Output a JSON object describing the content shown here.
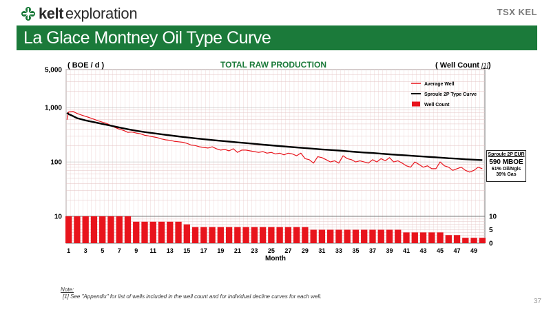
{
  "header": {
    "logo_text_bold": "kelt",
    "logo_text_regular": "exploration",
    "exchange_logo_text": "TSX KEL",
    "page_title": "La Glace Montney Oil Type Curve",
    "brand_color": "#1b7a3a"
  },
  "chart_header": {
    "left_unit": "( BOE / d )",
    "title": "TOTAL RAW PRODUCTION",
    "right_unit": "( Well Count ",
    "right_unit_ref": "[1]",
    "right_unit_close": ")"
  },
  "eur_box": {
    "title": "Sproule 2P EUR",
    "value": "590 MBOE",
    "oil_share": "61% Oil/Ngls",
    "gas_share": "39% Gas"
  },
  "note": {
    "label": "Note:",
    "text": "[1] See \"Appendix\" for list of wells included in the well count and for individual decline curves for each well."
  },
  "page_number": "37",
  "chart_data": {
    "type": "line",
    "title": "TOTAL RAW PRODUCTION",
    "xlabel": "Month",
    "ylabel": "( BOE / d )",
    "y2label": "( Well Count [1])",
    "x_range": [
      0.7,
      50.3
    ],
    "y_scale": "log",
    "ylim": [
      10,
      5000
    ],
    "y_ticks": [
      "10",
      "100",
      "1,000",
      "5,000"
    ],
    "y_tick_values": [
      10,
      100,
      1000,
      5000
    ],
    "y2_ticks": [
      "0",
      "5",
      "10"
    ],
    "y2_tick_values": [
      0,
      5,
      10
    ],
    "y2lim": [
      0,
      10
    ],
    "x_tick_labels": [
      "1",
      "3",
      "5",
      "7",
      "9",
      "11",
      "13",
      "15",
      "17",
      "19",
      "21",
      "23",
      "25",
      "27",
      "29",
      "31",
      "33",
      "35",
      "37",
      "39",
      "41",
      "43",
      "45",
      "47",
      "49"
    ],
    "grid": true,
    "legend_position": "top-right",
    "legend": [
      "Average Well",
      "Sproule 2P Type Curve",
      "Well Count"
    ],
    "series": [
      {
        "name": "Average Well",
        "color": "#e8141c",
        "x": [
          0.8,
          1,
          1.5,
          2,
          2.5,
          3,
          3.5,
          4,
          4.5,
          5,
          5.5,
          6,
          6.5,
          7,
          7.5,
          8,
          8.5,
          9,
          9.5,
          10,
          10.5,
          11,
          11.5,
          12,
          12.5,
          13,
          13.5,
          14,
          14.5,
          15,
          15.5,
          16,
          16.5,
          17,
          17.5,
          18,
          18.5,
          19,
          19.5,
          20,
          20.5,
          21,
          21.5,
          22,
          22.5,
          23,
          23.5,
          24,
          24.5,
          25,
          25.5,
          26,
          26.5,
          27,
          27.5,
          28,
          28.5,
          29,
          29.5,
          30,
          30.5,
          31,
          31.5,
          32,
          32.5,
          33,
          33.5,
          34,
          34.5,
          35,
          35.5,
          36,
          36.5,
          37,
          37.5,
          38,
          38.5,
          39,
          39.5,
          40,
          40.5,
          41,
          41.5,
          42,
          42.5,
          43,
          43.5,
          44,
          44.5,
          45,
          45.5,
          46,
          46.5,
          47,
          47.5,
          48,
          48.5,
          49,
          49.5,
          50
        ],
        "values": [
          600,
          830,
          850,
          780,
          730,
          690,
          650,
          610,
          570,
          540,
          510,
          470,
          430,
          400,
          380,
          350,
          355,
          340,
          330,
          310,
          300,
          290,
          280,
          265,
          255,
          250,
          240,
          235,
          230,
          220,
          205,
          200,
          190,
          185,
          180,
          190,
          175,
          165,
          170,
          160,
          175,
          150,
          165,
          165,
          160,
          155,
          150,
          155,
          145,
          150,
          140,
          145,
          135,
          145,
          140,
          130,
          145,
          115,
          110,
          95,
          125,
          120,
          110,
          100,
          105,
          95,
          130,
          115,
          110,
          100,
          105,
          100,
          95,
          110,
          100,
          115,
          105,
          120,
          100,
          105,
          95,
          85,
          80,
          100,
          90,
          80,
          85,
          75,
          75,
          100,
          85,
          80,
          70,
          75,
          80,
          70,
          65,
          70,
          80,
          75
        ]
      },
      {
        "name": "Sproule 2P Type Curve",
        "color": "#000000",
        "x": [
          0.8,
          1,
          1.5,
          2,
          2.5,
          3,
          4,
          5,
          6,
          7,
          8,
          9,
          10,
          11,
          12,
          13,
          14,
          15,
          16,
          17,
          18,
          19,
          20,
          21,
          22,
          23,
          24,
          25,
          26,
          27,
          28,
          29,
          30,
          31,
          32,
          33,
          34,
          35,
          36,
          37,
          38,
          39,
          40,
          41,
          42,
          43,
          44,
          45,
          46,
          47,
          48,
          49,
          50
        ],
        "values": [
          800,
          760,
          700,
          640,
          610,
          580,
          540,
          500,
          465,
          430,
          400,
          375,
          355,
          338,
          323,
          308,
          295,
          283,
          272,
          262,
          253,
          245,
          237,
          229,
          222,
          215,
          208,
          202,
          196,
          190,
          185,
          180,
          175,
          170,
          166,
          162,
          157,
          153,
          149,
          146,
          142,
          138,
          135,
          132,
          129,
          126,
          123,
          120,
          117,
          115,
          112,
          110,
          108
        ]
      },
      {
        "name": "Well Count",
        "type": "bar",
        "color": "#e8141c",
        "x": [
          1,
          2,
          3,
          4,
          5,
          6,
          7,
          8,
          9,
          10,
          11,
          12,
          13,
          14,
          15,
          16,
          17,
          18,
          19,
          20,
          21,
          22,
          23,
          24,
          25,
          26,
          27,
          28,
          29,
          30,
          31,
          32,
          33,
          34,
          35,
          36,
          37,
          38,
          39,
          40,
          41,
          42,
          43,
          44,
          45,
          46,
          47,
          48,
          49,
          50
        ],
        "values": [
          10,
          10,
          10,
          10,
          10,
          10,
          10,
          10,
          8,
          8,
          8,
          8,
          8,
          8,
          7,
          6,
          6,
          6,
          6,
          6,
          6,
          6,
          6,
          6,
          6,
          6,
          6,
          6,
          6,
          5,
          5,
          5,
          5,
          5,
          5,
          5,
          5,
          5,
          5,
          5,
          4,
          4,
          4,
          4,
          4,
          3,
          3,
          2,
          2,
          2
        ]
      }
    ]
  }
}
